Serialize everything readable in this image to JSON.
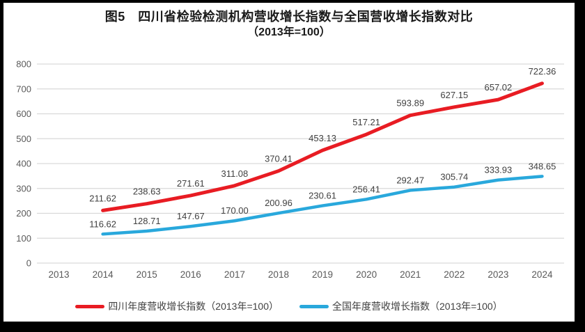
{
  "frame": {
    "border_color": "#000000",
    "canvas_background": "#ffffff"
  },
  "title": {
    "line1": "图5　四川省检验检测机构营收增长指数与全国营收增长指数对比",
    "line2": "（2013年=100）"
  },
  "chart_data": {
    "type": "line",
    "categories": [
      "2013",
      "2014",
      "2015",
      "2016",
      "2017",
      "2018",
      "2019",
      "2020",
      "2021",
      "2022",
      "2023",
      "2024"
    ],
    "series": [
      {
        "name": "四川年度营收增长指数（2013年=100）",
        "color": "#e81c23",
        "values": [
          null,
          211.62,
          238.63,
          271.61,
          311.08,
          370.41,
          453.13,
          517.21,
          593.89,
          627.15,
          657.02,
          722.36
        ],
        "labels": [
          null,
          "211.62",
          "238.63",
          "271.61",
          "311.08",
          "370.41",
          "453.13",
          "517.21",
          "593.89",
          "627.15",
          "657.02",
          "722.36"
        ]
      },
      {
        "name": "全国年度营收增长指数（2013年=100）",
        "color": "#29a8dc",
        "values": [
          null,
          116.62,
          128.71,
          147.67,
          170,
          200.96,
          230.61,
          256.41,
          292.47,
          305.74,
          333.93,
          348.65
        ],
        "labels": [
          null,
          "116.62",
          "128.71",
          "147.67",
          "170.00",
          "200.96",
          "230.61",
          "256.41",
          "292.47",
          "305.74",
          "333.93",
          "348.65"
        ]
      }
    ],
    "ylim": [
      0,
      800
    ],
    "ytick_step": 100,
    "grid": true,
    "gridline_color": "#d9d9d9",
    "legend_position": "bottom",
    "xlabel": "",
    "ylabel": ""
  }
}
